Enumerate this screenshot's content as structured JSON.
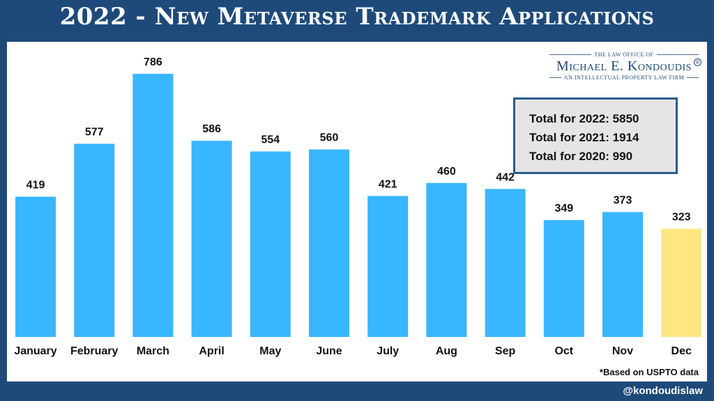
{
  "title": "2022 - New Metaverse Trademark Applications",
  "logo": {
    "line1": "THE LAW OFFICE OF",
    "name": "Michael E. Kondoudis",
    "registered": "®",
    "line3": "AN INTELLECTUAL PROPERTY LAW FIRM"
  },
  "totals": [
    "Total for 2022: 5850",
    "Total for 2021: 1914",
    "Total for 2020: 990"
  ],
  "note": "*Based on USPTO data",
  "handle": "@kondoudislaw",
  "colors": {
    "background": "#1e4a7a",
    "bar": "#38b6ff",
    "highlight_bar": "#ffe680"
  },
  "chart_data": {
    "type": "bar",
    "title": "2022 - New Metaverse Trademark Applications",
    "xlabel": "",
    "ylabel": "",
    "categories": [
      "January",
      "February",
      "March",
      "April",
      "May",
      "June",
      "July",
      "Aug",
      "Sep",
      "Oct",
      "Nov",
      "Dec"
    ],
    "values": [
      419,
      577,
      786,
      586,
      554,
      560,
      421,
      460,
      442,
      349,
      373,
      323
    ],
    "highlight_category": "Dec",
    "data_labels": true,
    "grid": false,
    "ylim": [
      0,
      786
    ]
  }
}
